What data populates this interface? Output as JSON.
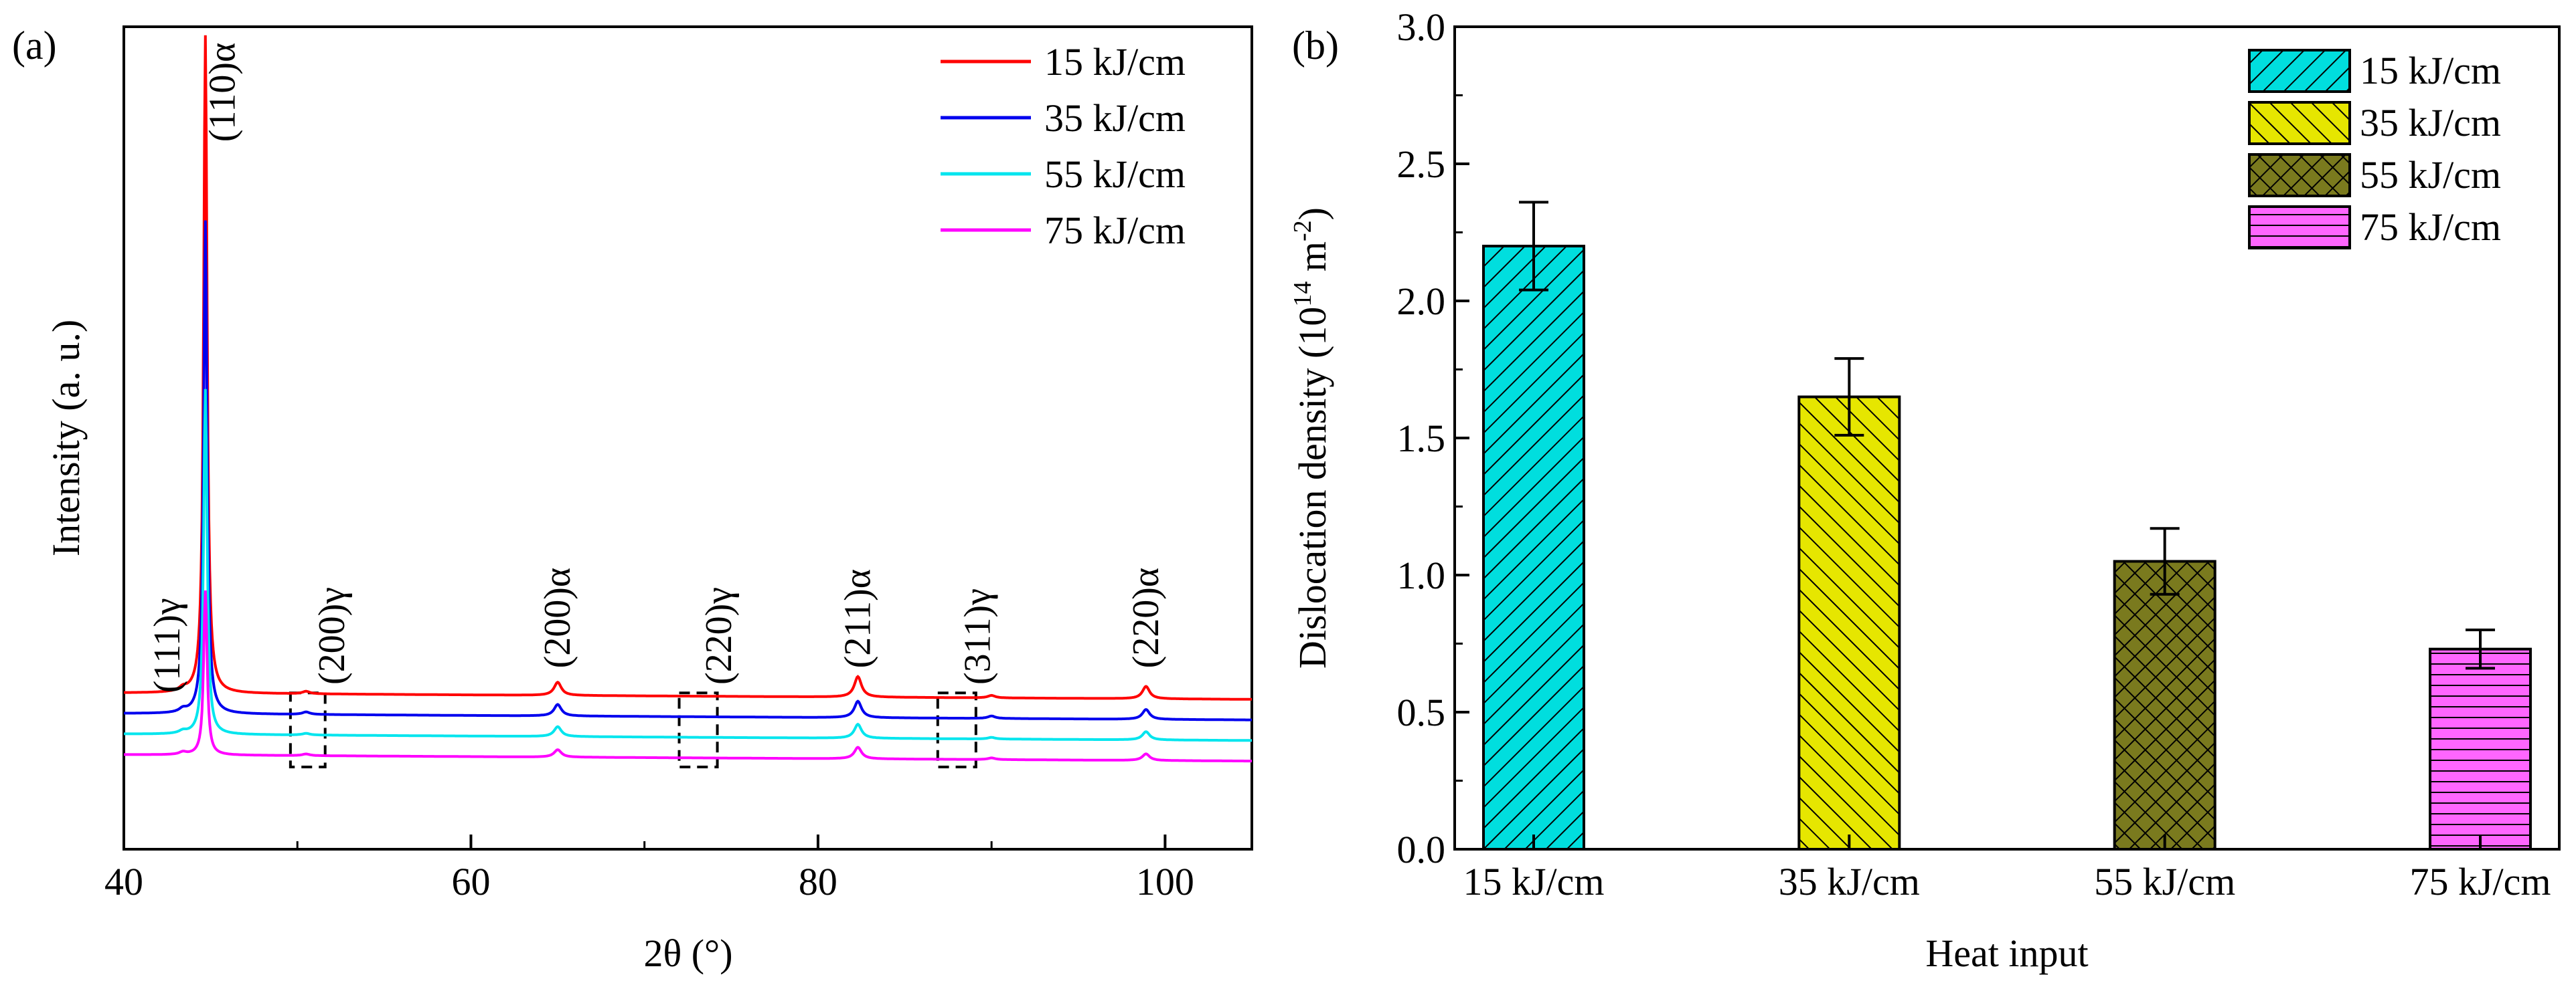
{
  "chart_data": [
    {
      "type": "line",
      "panel_label": "(a)",
      "xlabel": "2θ (°)",
      "ylabel": "Intensity (a. u.)",
      "xlim": [
        40,
        105
      ],
      "x_ticks": [
        "40",
        "60",
        "80",
        "100"
      ],
      "x_tick_values": [
        40,
        60,
        80,
        100
      ],
      "y_unit": "arbitrary (normalized)",
      "ylim": [
        0,
        1
      ],
      "legend_position": "top-right",
      "series": [
        {
          "name": "15 kJ/cm",
          "color": "#ff0000",
          "baseline": 0.19,
          "peaks": [
            [
              43.4,
              0.004
            ],
            [
              44.7,
              0.8
            ],
            [
              50.5,
              0.003
            ],
            [
              65.0,
              0.016
            ],
            [
              82.3,
              0.025
            ],
            [
              90.0,
              0.003
            ],
            [
              98.9,
              0.015
            ]
          ]
        },
        {
          "name": "35 kJ/cm",
          "color": "#0000ee",
          "baseline": 0.165,
          "peaks": [
            [
              43.4,
              0.004
            ],
            [
              44.7,
              0.6
            ],
            [
              50.5,
              0.003
            ],
            [
              65.0,
              0.014
            ],
            [
              82.3,
              0.02
            ],
            [
              90.0,
              0.003
            ],
            [
              98.9,
              0.012
            ]
          ]
        },
        {
          "name": "55 kJ/cm",
          "color": "#00e5ee",
          "baseline": 0.14,
          "peaks": [
            [
              43.4,
              0.003
            ],
            [
              44.7,
              0.42
            ],
            [
              50.5,
              0.002
            ],
            [
              65.0,
              0.012
            ],
            [
              82.3,
              0.017
            ],
            [
              90.0,
              0.002
            ],
            [
              98.9,
              0.01
            ]
          ]
        },
        {
          "name": "75 kJ/cm",
          "color": "#ff00ff",
          "baseline": 0.115,
          "peaks": [
            [
              43.4,
              0.003
            ],
            [
              44.7,
              0.2
            ],
            [
              50.5,
              0.002
            ],
            [
              65.0,
              0.009
            ],
            [
              82.3,
              0.014
            ],
            [
              90.0,
              0.002
            ],
            [
              98.9,
              0.008
            ]
          ]
        }
      ],
      "annotations": [
        {
          "text": "(111)γ",
          "x": 42.5,
          "y": 0.19
        },
        {
          "text": "(110)α",
          "x": 45.7,
          "y": 0.86
        },
        {
          "text": "(200)γ",
          "x": 52.0,
          "y": 0.2
        },
        {
          "text": "(200)α",
          "x": 65.0,
          "y": 0.22
        },
        {
          "text": "(220)γ",
          "x": 74.3,
          "y": 0.2
        },
        {
          "text": "(211)α",
          "x": 82.3,
          "y": 0.22
        },
        {
          "text": "(311)γ",
          "x": 89.2,
          "y": 0.2
        },
        {
          "text": "(220)α",
          "x": 98.9,
          "y": 0.22
        }
      ],
      "highlight_boxes": [
        [
          49.6,
          51.6
        ],
        [
          72.0,
          74.2
        ],
        [
          86.9,
          89.1
        ]
      ],
      "highlight_y": [
        0.1,
        0.19
      ]
    },
    {
      "type": "bar",
      "panel_label": "(b)",
      "xlabel": "Heat input",
      "ylabel": "Dislocation density (10",
      "ylabel_sup1": "14",
      "ylabel_mid": " m",
      "ylabel_sup2": "-2",
      "ylabel_end": ")",
      "categories": [
        "15 kJ/cm",
        "35 kJ/cm",
        "55 kJ/cm",
        "75 kJ/cm"
      ],
      "values": [
        2.2,
        1.65,
        1.05,
        0.73
      ],
      "errors": [
        0.16,
        0.14,
        0.12,
        0.07
      ],
      "ylim": [
        0,
        3.0
      ],
      "y_ticks": [
        "0.0",
        "0.5",
        "1.0",
        "1.5",
        "2.0",
        "2.5",
        "3.0"
      ],
      "y_tick_values": [
        0,
        0.5,
        1.0,
        1.5,
        2.0,
        2.5,
        3.0
      ],
      "legend_position": "top-right",
      "bar_colors": [
        "#00dede",
        "#e6e600",
        "#7a7a1e",
        "#ff66ff"
      ],
      "legend": [
        "15 kJ/cm",
        "35 kJ/cm",
        "55 kJ/cm",
        "75 kJ/cm"
      ]
    }
  ]
}
